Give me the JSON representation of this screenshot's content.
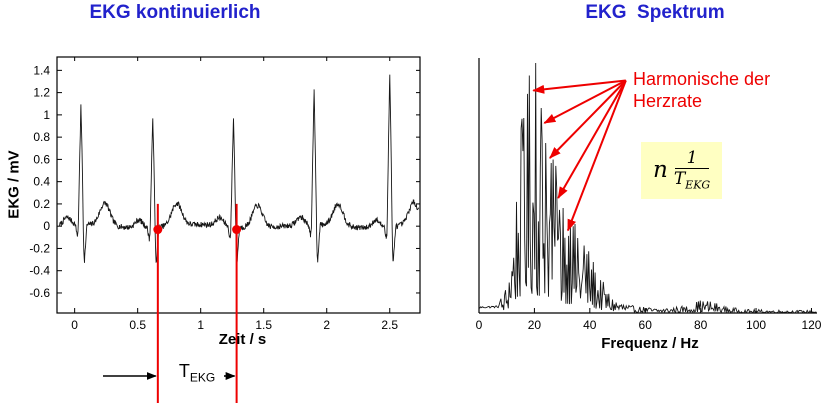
{
  "colors": {
    "title": "#2222cc",
    "red": "#ee0000",
    "formula_bg": "#ffffc2",
    "trace": "#161616"
  },
  "left_panel": {
    "title": "EKG kontinuierlich",
    "xlabel": "Zeit / s",
    "ylabel": "EKG / mV",
    "t_label_base": "T",
    "t_label_sub": "EKG"
  },
  "right_panel": {
    "title": "EKG  Spektrum",
    "xlabel": "Frequenz / Hz",
    "annotation_line1": "Harmonische der",
    "annotation_line2": "Herzrate",
    "formula": {
      "coefficient": "n",
      "numerator": "1",
      "denominator_base": "T",
      "denominator_sub": "EKG"
    }
  },
  "chart_data": [
    {
      "type": "line",
      "title": "EKG kontinuierlich",
      "xlabel": "Zeit / s",
      "ylabel": "EKG / mV",
      "xlim": [
        -0.14,
        2.74
      ],
      "ylim": [
        -0.78,
        1.52
      ],
      "xticks": [
        0,
        0.5,
        1,
        1.5,
        2,
        2.5
      ],
      "xtick_labels": [
        "0",
        "0.5",
        "1",
        "1.5",
        "2",
        "2.5"
      ],
      "yticks": [
        -0.6,
        -0.4,
        -0.2,
        0,
        0.2,
        0.4,
        0.6,
        0.8,
        1,
        1.2,
        1.4
      ],
      "ytick_labels": [
        "-0.6",
        "-0.4",
        "-0.2",
        "0",
        "0.2",
        "0.4",
        "0.6",
        "0.8",
        "1",
        "1.2",
        "1.4"
      ],
      "grid": false,
      "r_peak_times_s": [
        0.05,
        0.62,
        1.26,
        1.9,
        2.5
      ],
      "r_peak_amplitudes_mV": [
        1.08,
        1.0,
        0.97,
        1.22,
        1.38
      ],
      "q_wave_amplitude_mV": -0.1,
      "s_wave_amplitude_mV": -0.32,
      "t_wave_amplitude_mV": 0.2,
      "p_wave_amplitude_mV": 0.07,
      "heart_period_s": 0.62,
      "marker_lines_t_s": [
        0.66,
        1.285
      ]
    },
    {
      "type": "line",
      "title": "EKG Spektrum",
      "xlabel": "Frequenz / Hz",
      "xlim": [
        0,
        122
      ],
      "ylim": [
        0,
        1.02
      ],
      "xticks": [
        0,
        20,
        40,
        60,
        80,
        100,
        120
      ],
      "xtick_labels": [
        "0",
        "20",
        "40",
        "60",
        "80",
        "100",
        "120"
      ],
      "grid": false,
      "spectral_envelope_hz_amp": [
        [
          0,
          0.025
        ],
        [
          7,
          0.028
        ],
        [
          10,
          0.12
        ],
        [
          13,
          0.45
        ],
        [
          15,
          0.75
        ],
        [
          17,
          0.88
        ],
        [
          19,
          0.92
        ],
        [
          21,
          0.85
        ],
        [
          23,
          0.8
        ],
        [
          25,
          0.72
        ],
        [
          27,
          0.62
        ],
        [
          30,
          0.5
        ],
        [
          33,
          0.42
        ],
        [
          36,
          0.32
        ],
        [
          40,
          0.26
        ],
        [
          44,
          0.14
        ],
        [
          48,
          0.07
        ],
        [
          55,
          0.03
        ],
        [
          65,
          0.02
        ],
        [
          75,
          0.03
        ],
        [
          80,
          0.055
        ],
        [
          84,
          0.05
        ],
        [
          88,
          0.03
        ],
        [
          95,
          0.015
        ],
        [
          110,
          0.012
        ],
        [
          122,
          0.01
        ]
      ],
      "labeled_peaks_hz_amp": [
        [
          16.2,
          0.78
        ],
        [
          18.3,
          0.95
        ],
        [
          20.6,
          1.0
        ],
        [
          22.4,
          0.82
        ],
        [
          24.1,
          0.68
        ],
        [
          26,
          0.6
        ],
        [
          28.2,
          0.5
        ],
        [
          30.5,
          0.42
        ],
        [
          33,
          0.35
        ],
        [
          35.5,
          0.3
        ],
        [
          38,
          0.27
        ]
      ],
      "harmonic_arrow_tips_hz_amp": [
        [
          18.5,
          0.89
        ],
        [
          22.5,
          0.76
        ],
        [
          24.5,
          0.62
        ],
        [
          27.5,
          0.46
        ],
        [
          31,
          0.33
        ]
      ],
      "arrow_origin_hz_amp": [
        53,
        0.93
      ]
    }
  ]
}
